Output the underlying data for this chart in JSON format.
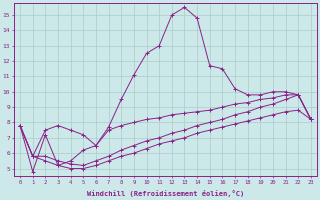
{
  "xlabel": "Windchill (Refroidissement éolien,°C)",
  "background_color": "#cce8e8",
  "grid_color": "#aacccc",
  "line_color": "#882288",
  "xlim": [
    -0.5,
    23.5
  ],
  "ylim": [
    4.5,
    15.8
  ],
  "xticks": [
    0,
    1,
    2,
    3,
    4,
    5,
    6,
    7,
    8,
    9,
    10,
    11,
    12,
    13,
    14,
    15,
    16,
    17,
    18,
    19,
    20,
    21,
    22,
    23
  ],
  "yticks": [
    5,
    6,
    7,
    8,
    9,
    10,
    11,
    12,
    13,
    14,
    15
  ],
  "series": [
    {
      "x": [
        0,
        1,
        2,
        3,
        4,
        5,
        6,
        7,
        8,
        9,
        10,
        11,
        12,
        13,
        14,
        15,
        16,
        17,
        18,
        19,
        20,
        21,
        22,
        23
      ],
      "y": [
        7.8,
        4.8,
        7.2,
        5.2,
        5.5,
        6.2,
        6.5,
        7.7,
        9.5,
        11.1,
        12.5,
        13.0,
        15.0,
        15.5,
        14.8,
        11.7,
        11.5,
        10.2,
        9.8,
        9.8,
        10.0,
        10.0,
        9.8,
        8.2
      ]
    },
    {
      "x": [
        0,
        1,
        2,
        3,
        4,
        5,
        6,
        7,
        8,
        9,
        10,
        11,
        12,
        13,
        14,
        15,
        16,
        17,
        18,
        19,
        20,
        21,
        22,
        23
      ],
      "y": [
        7.8,
        5.8,
        7.5,
        7.8,
        7.5,
        7.2,
        6.5,
        7.5,
        7.8,
        8.0,
        8.2,
        8.3,
        8.5,
        8.6,
        8.7,
        8.8,
        9.0,
        9.2,
        9.3,
        9.5,
        9.6,
        9.8,
        9.8,
        8.2
      ]
    },
    {
      "x": [
        0,
        1,
        2,
        3,
        4,
        5,
        6,
        7,
        8,
        9,
        10,
        11,
        12,
        13,
        14,
        15,
        16,
        17,
        18,
        19,
        20,
        21,
        22,
        23
      ],
      "y": [
        7.8,
        5.8,
        5.8,
        5.5,
        5.3,
        5.2,
        5.5,
        5.8,
        6.2,
        6.5,
        6.8,
        7.0,
        7.3,
        7.5,
        7.8,
        8.0,
        8.2,
        8.5,
        8.7,
        9.0,
        9.2,
        9.5,
        9.8,
        8.2
      ]
    },
    {
      "x": [
        0,
        1,
        2,
        3,
        4,
        5,
        6,
        7,
        8,
        9,
        10,
        11,
        12,
        13,
        14,
        15,
        16,
        17,
        18,
        19,
        20,
        21,
        22,
        23
      ],
      "y": [
        7.8,
        5.8,
        5.5,
        5.2,
        5.0,
        5.0,
        5.2,
        5.5,
        5.8,
        6.0,
        6.3,
        6.6,
        6.8,
        7.0,
        7.3,
        7.5,
        7.7,
        7.9,
        8.1,
        8.3,
        8.5,
        8.7,
        8.8,
        8.2
      ]
    }
  ]
}
